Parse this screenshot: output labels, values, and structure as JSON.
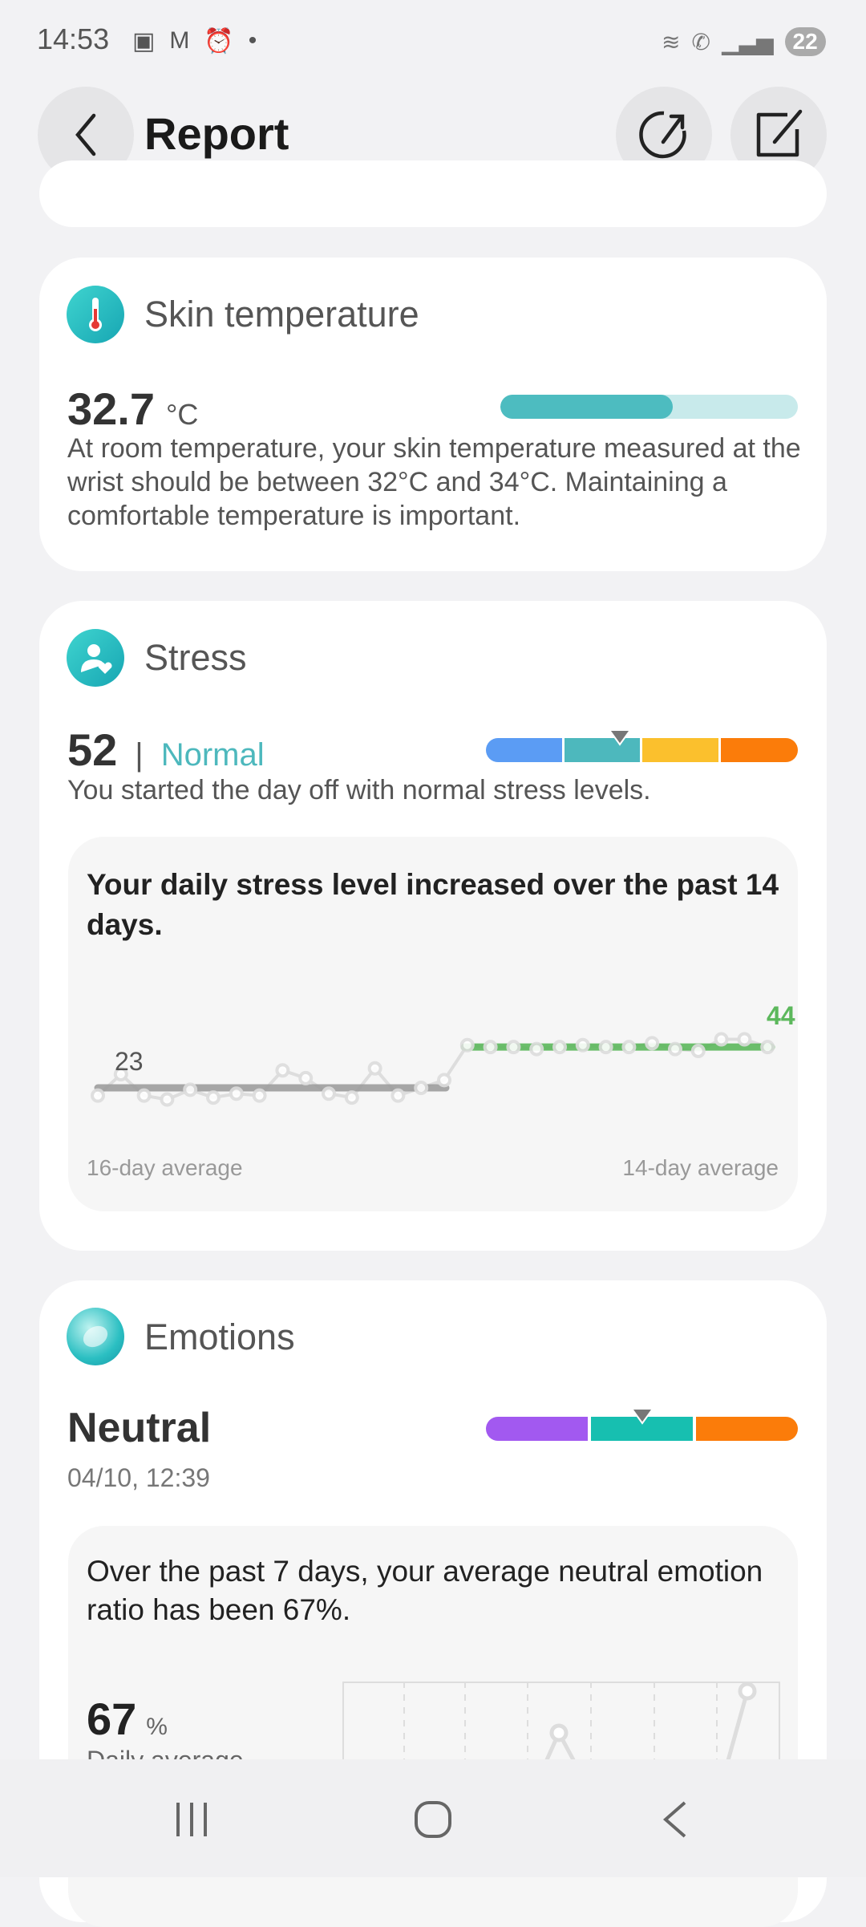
{
  "status_bar": {
    "time": "14:53",
    "battery": "22",
    "icons": [
      "screenshot-icon",
      "gmail-icon",
      "alarm-icon",
      "dot-icon",
      "wifi-icon",
      "wifi-calling-icon",
      "signal-icon",
      "battery-icon"
    ]
  },
  "header": {
    "title": "Report",
    "back_icon": "chevron-left-icon",
    "share_icon": "share-icon",
    "edit_icon": "edit-icon"
  },
  "skin_temperature": {
    "title": "Skin temperature",
    "value": "32.7",
    "unit": "°C",
    "level_fraction": 0.58,
    "bar_colors": {
      "fill": "#4dbcc0",
      "track": "#c8eaeb"
    },
    "description": "At room temperature, your skin temperature measured at the wrist should be between 32°C and 34°C. Maintaining a comfortable temperature is important."
  },
  "stress": {
    "title": "Stress",
    "value": "52",
    "separator": "|",
    "level": "Normal",
    "level_color": "#4db8bd",
    "scale_colors": [
      "#5b9cf4",
      "#4db8bd",
      "#fbc02d",
      "#fb7c0a"
    ],
    "marker_segment": 1,
    "description": "You started the day off with normal stress levels.",
    "trend_text": "Your daily stress level increased over the past 14 days.",
    "left_label": "16-day average",
    "right_label": "14-day average"
  },
  "chart_data": {
    "type": "line",
    "series": [
      {
        "values": [
          19,
          30,
          19,
          17,
          22,
          18,
          20,
          19,
          32,
          28,
          20,
          18,
          33,
          19,
          23,
          27
        ],
        "average": 23,
        "average_label": "23"
      },
      {
        "values": [
          45,
          44,
          44,
          43,
          44,
          45,
          44,
          44,
          46,
          43,
          42,
          48,
          48,
          44
        ],
        "average": 44,
        "average_label": "44"
      }
    ],
    "xlabel": "",
    "ylabel": "",
    "colors": {
      "past": "#999999",
      "recent": "#5cb85c",
      "points": "#dddddd"
    }
  },
  "emotions": {
    "title": "Emotions",
    "value": "Neutral",
    "timestamp": "04/10, 12:39",
    "scale_colors": [
      "#a259f0",
      "#17bfb0",
      "#fb7c0a"
    ],
    "marker_segment": 1,
    "summary": "Over the past 7 days, your average neutral emotion ratio has been 67%.",
    "daily_value": "67",
    "daily_unit": "%",
    "daily_label": "Daily average"
  },
  "nav_bar": {
    "recents_icon": "recents-icon",
    "home_icon": "home-icon",
    "back_icon": "back-icon"
  }
}
